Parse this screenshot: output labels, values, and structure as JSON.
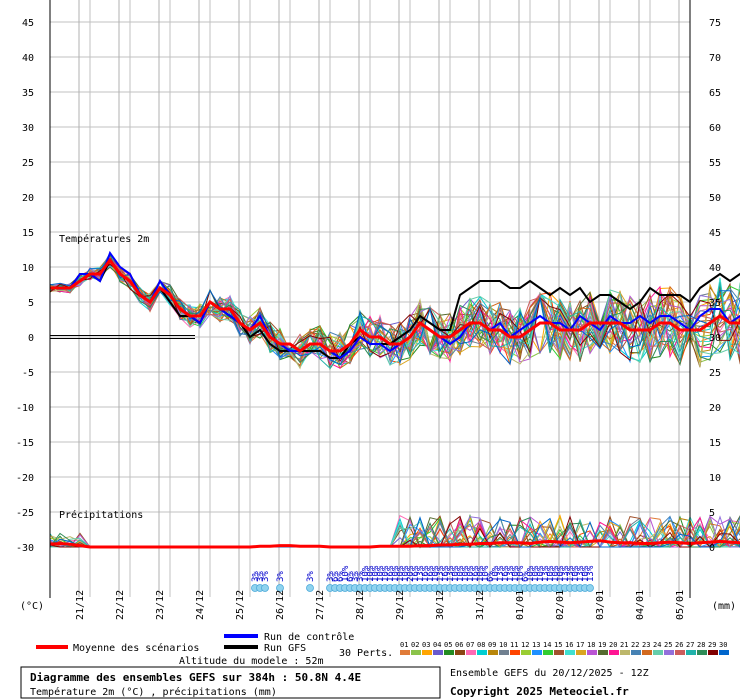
{
  "chart_data": {
    "type": "line",
    "section_labels": {
      "temperature": "Températures 2m",
      "precip": "Précipitations"
    },
    "left_axis": {
      "unit": "(°C)",
      "ticks": [
        45,
        40,
        35,
        30,
        25,
        20,
        15,
        10,
        5,
        0,
        -5,
        -10,
        -15,
        -20,
        -25,
        -30
      ],
      "ylim": [
        -30,
        45
      ]
    },
    "right_axis": {
      "unit": "(mm)",
      "ticks": [
        75,
        70,
        65,
        60,
        55,
        50,
        45,
        40,
        35,
        30,
        25,
        20,
        15,
        10,
        5,
        0
      ],
      "ylim": [
        0,
        75
      ]
    },
    "x_ticks": [
      "21/12",
      "22/12",
      "23/12",
      "24/12",
      "25/12",
      "26/12",
      "27/12",
      "28/12",
      "29/12",
      "30/12",
      "31/12",
      "01/01",
      "02/01",
      "03/01",
      "04/01",
      "05/01"
    ],
    "grid": true,
    "snow_probabilities": [
      {
        "t": 41,
        "label": "3%"
      },
      {
        "t": 42,
        "label": "3%"
      },
      {
        "t": 43,
        "label": "3%"
      },
      {
        "t": 46,
        "label": "3%"
      },
      {
        "t": 52,
        "label": "3%"
      },
      {
        "t": 56,
        "label": "3%"
      },
      {
        "t": 57,
        "label": "6%"
      },
      {
        "t": 58,
        "label": "6%"
      },
      {
        "t": 59,
        "label": "10%"
      },
      {
        "t": 60,
        "label": "6%"
      },
      {
        "t": 61,
        "label": "3%"
      },
      {
        "t": 62,
        "label": "3%"
      },
      {
        "t": 63,
        "label": "10%"
      },
      {
        "t": 64,
        "label": "10%"
      },
      {
        "t": 65,
        "label": "10%"
      },
      {
        "t": 66,
        "label": "10%"
      },
      {
        "t": 67,
        "label": "10%"
      },
      {
        "t": 68,
        "label": "16%"
      },
      {
        "t": 69,
        "label": "10%"
      },
      {
        "t": 70,
        "label": "10%"
      },
      {
        "t": 71,
        "label": "10%"
      },
      {
        "t": 72,
        "label": "20%"
      },
      {
        "t": 73,
        "label": "16%"
      },
      {
        "t": 74,
        "label": "13%"
      },
      {
        "t": 75,
        "label": "16%"
      },
      {
        "t": 76,
        "label": "16%"
      },
      {
        "t": 77,
        "label": "10%"
      },
      {
        "t": 78,
        "label": "13%"
      },
      {
        "t": 79,
        "label": "16%"
      },
      {
        "t": 80,
        "label": "13%"
      },
      {
        "t": 81,
        "label": "10%"
      },
      {
        "t": 82,
        "label": "10%"
      },
      {
        "t": 83,
        "label": "10%"
      },
      {
        "t": 84,
        "label": "10%"
      },
      {
        "t": 85,
        "label": "16%"
      },
      {
        "t": 86,
        "label": "10%"
      },
      {
        "t": 87,
        "label": "10%"
      },
      {
        "t": 88,
        "label": "6%"
      },
      {
        "t": 89,
        "label": "10%"
      },
      {
        "t": 90,
        "label": "13%"
      },
      {
        "t": 91,
        "label": "16%"
      },
      {
        "t": 92,
        "label": "13%"
      },
      {
        "t": 93,
        "label": "10%"
      },
      {
        "t": 94,
        "label": "10%"
      },
      {
        "t": 95,
        "label": "6%"
      },
      {
        "t": 96,
        "label": "10%"
      },
      {
        "t": 97,
        "label": "10%"
      },
      {
        "t": 98,
        "label": "10%"
      },
      {
        "t": 99,
        "label": "13%"
      },
      {
        "t": 100,
        "label": "10%"
      },
      {
        "t": 101,
        "label": "10%"
      },
      {
        "t": 102,
        "label": "10%"
      },
      {
        "t": 103,
        "label": "13%"
      },
      {
        "t": 104,
        "label": "13%"
      },
      {
        "t": 105,
        "label": "10%"
      },
      {
        "t": 106,
        "label": "13%"
      },
      {
        "t": 107,
        "label": "10%"
      },
      {
        "t": 108,
        "label": "13%"
      }
    ],
    "series": [
      {
        "name": "Moyenne des scénarios",
        "color": "#ff0000",
        "values": [
          7,
          7,
          7,
          8,
          9,
          9,
          11,
          9,
          8,
          6,
          5,
          7,
          6,
          4,
          3,
          3,
          5,
          4,
          4,
          2,
          1,
          2,
          0,
          -1,
          -1,
          -2,
          -1,
          -1,
          -2,
          -2,
          -1,
          1,
          0,
          0,
          -1,
          -1,
          0,
          2,
          1,
          0,
          0,
          1,
          2,
          2,
          1,
          1,
          0,
          0,
          1,
          2,
          2,
          1,
          1,
          1,
          2,
          2,
          2,
          2,
          1,
          1,
          1,
          2,
          2,
          1,
          1,
          1,
          2,
          3,
          2,
          2,
          2,
          2
        ]
      },
      {
        "name": "Run de contrôle",
        "color": "#0000ff",
        "values": [
          7,
          7,
          7,
          9,
          9,
          8,
          12,
          10,
          9,
          6,
          5,
          8,
          6,
          4,
          3,
          2,
          5,
          4,
          3,
          2,
          1,
          3,
          0,
          -1,
          -2,
          -2,
          -1,
          -1,
          -2,
          -3,
          -2,
          0,
          -1,
          -1,
          -2,
          -1,
          0,
          2,
          1,
          0,
          -1,
          0,
          2,
          2,
          1,
          2,
          0,
          1,
          2,
          3,
          2,
          2,
          1,
          3,
          2,
          1,
          3,
          2,
          2,
          3,
          2,
          3,
          3,
          2,
          1,
          3,
          4,
          4,
          2,
          3,
          3,
          3
        ]
      },
      {
        "name": "Run GFS",
        "color": "#000000",
        "values": [
          7,
          7,
          7,
          9,
          9,
          8,
          11,
          9,
          8,
          6,
          5,
          7,
          5,
          3,
          3,
          2,
          5,
          4,
          3,
          2,
          0,
          1,
          -1,
          -2,
          -2,
          -2,
          -2,
          -2,
          -3,
          -3,
          -1,
          0,
          -1,
          -1,
          -1,
          0,
          1,
          3,
          2,
          1,
          1,
          6,
          7,
          8,
          8,
          8,
          7,
          7,
          8,
          7,
          6,
          7,
          6,
          7,
          5,
          6,
          6,
          5,
          4,
          5,
          7,
          6,
          6,
          6,
          5,
          7,
          8,
          9,
          8,
          9,
          8,
          9
        ]
      }
    ],
    "precipitation": {
      "series": [
        {
          "name": "Moyenne des scénarios",
          "values": [
            0.4,
            0.5,
            0.4,
            0.2,
            0,
            0,
            0,
            0,
            0,
            0,
            0,
            0,
            0,
            0,
            0,
            0,
            0,
            0,
            0,
            0,
            0,
            0.1,
            0.1,
            0.2,
            0.2,
            0.1,
            0.1,
            0.1,
            0,
            0,
            0,
            0,
            0,
            0.1,
            0.1,
            0.1,
            0.1,
            0.2,
            0.2,
            0.3,
            0.3,
            0.4,
            0.4,
            0.5,
            0.5,
            0.6,
            0.6,
            0.6,
            0.5,
            0.7,
            0.8,
            0.7,
            0.6,
            0.7,
            0.8,
            0.9,
            0.7,
            0.6,
            0.6,
            0.5,
            0.5,
            0.6,
            0.7,
            0.6,
            0.5,
            0.6,
            0.7,
            0.8,
            0.7,
            0.6,
            0.5,
            0.3
          ]
        }
      ]
    }
  },
  "legend": {
    "mean_label": "Moyenne des scénarios",
    "control_label": "Run de contrôle",
    "gfs_label": "Run GFS",
    "perts_label": "30 Perts.",
    "pert_numbers": [
      "01",
      "02",
      "03",
      "04",
      "05",
      "06",
      "07",
      "08",
      "09",
      "10",
      "11",
      "12",
      "13",
      "14",
      "15",
      "16",
      "17",
      "18",
      "19",
      "20",
      "21",
      "22",
      "23",
      "24",
      "25",
      "26",
      "27",
      "28",
      "29",
      "30"
    ],
    "pert_colors": [
      "#e07b39",
      "#8bc34a",
      "#ffa500",
      "#6a5acd",
      "#228b22",
      "#8b4513",
      "#ff69b4",
      "#00ced1",
      "#b8860b",
      "#708090",
      "#ff4500",
      "#9acd32",
      "#1e90ff",
      "#32cd32",
      "#a0522d",
      "#40e0d0",
      "#daa520",
      "#ba55d3",
      "#556b2f",
      "#ff1493",
      "#bdb76b",
      "#4682b4",
      "#d2691e",
      "#66cdaa",
      "#9370db",
      "#cd5c5c",
      "#20b2aa",
      "#2e8b57",
      "#800000",
      "#0066cc"
    ]
  },
  "altitude_label": "Altitude du modele : 52m",
  "info_title": "Diagramme des ensembles GEFS sur 384h : 50.8N 4.4E",
  "info_subtitle": "Température 2m (°C) , précipitations (mm)",
  "run_label": "Ensemble GEFS du 20/12/2025 - 12Z",
  "copyright": "Copyright 2025 Meteociel.fr"
}
